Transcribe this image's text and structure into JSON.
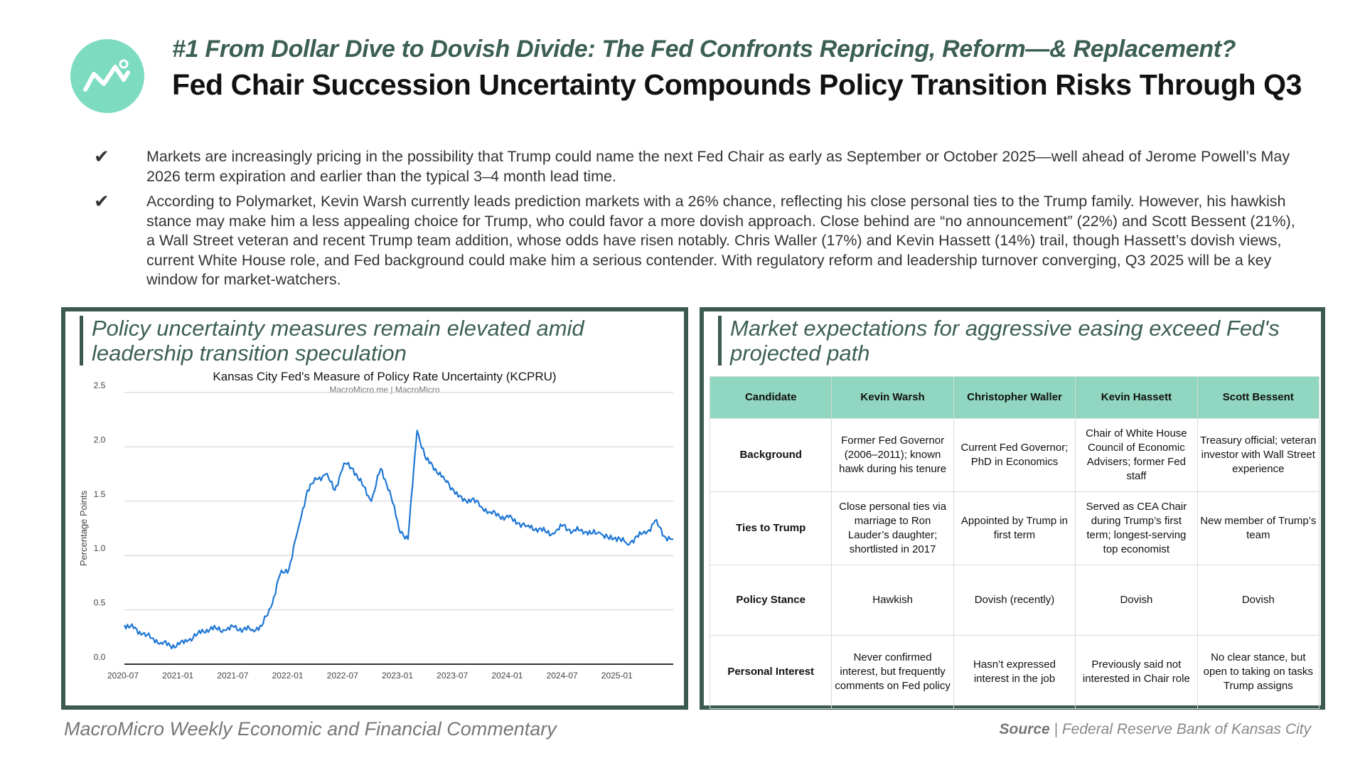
{
  "header": {
    "kicker": "#1 From Dollar Dive to Dovish Divide: The Fed Confronts Repricing, Reform—& Replacement?",
    "title": "Fed Chair Succession Uncertainty Compounds Policy Transition Risks Through Q3",
    "logo_icon": "line-chart-icon",
    "logo_color": "#7ddcbf"
  },
  "bullets": [
    "Markets are increasingly pricing in the possibility that Trump could name the next Fed Chair as early as September or October 2025—well ahead of Jerome Powell’s May 2026 term expiration and earlier than the typical 3–4 month lead time.",
    "According to Polymarket, Kevin Warsh currently leads prediction markets with a 26% chance, reflecting his close personal ties to the Trump family. However, his hawkish stance may make him a less appealing choice for Trump, who could favor a more dovish approach. Close behind are “no announcement” (22%) and Scott Bessent (21%), a Wall Street veteran and recent Trump team addition, whose odds have risen notably. Chris Waller (17%) and Kevin Hassett (14%) trail, though Hassett’s dovish views, current White House role, and Fed background could make him a serious contender. With regulatory reform and leadership turnover converging, Q3 2025 will be a key window for market-watchers."
  ],
  "left_panel": {
    "title": "Policy uncertainty measures remain elevated amid leadership transition speculation"
  },
  "chart_data": {
    "type": "line",
    "title": "Kansas City Fed's Measure of Policy Rate Uncertainty (KCPRU)",
    "subtitle": "MacroMicro.me | MacroMicro",
    "xlabel": "",
    "ylabel": "Percentage Points",
    "ylim": [
      0,
      2.5
    ],
    "yticks": [
      "0.0",
      "0.5",
      "1.0",
      "1.5",
      "2.0",
      "2.5"
    ],
    "xticks": [
      "2020-07",
      "2021-01",
      "2021-07",
      "2022-01",
      "2022-07",
      "2023-01",
      "2023-07",
      "2024-01",
      "2024-07",
      "2025-01"
    ],
    "grid": true,
    "line_color": "#1f77d4",
    "series": [
      {
        "name": "",
        "x": [
          "2020-07",
          "2020-08",
          "2020-09",
          "2020-10",
          "2020-11",
          "2020-12",
          "2021-01",
          "2021-02",
          "2021-03",
          "2021-04",
          "2021-05",
          "2021-06",
          "2021-07",
          "2021-08",
          "2021-09",
          "2021-10",
          "2021-11",
          "2021-12",
          "2022-01",
          "2022-02",
          "2022-03",
          "2022-04",
          "2022-05",
          "2022-06",
          "2022-07",
          "2022-08",
          "2022-09",
          "2022-10",
          "2022-11",
          "2022-12",
          "2023-01",
          "2023-02",
          "2023-03",
          "2023-04",
          "2023-05",
          "2023-06",
          "2023-07",
          "2023-08",
          "2023-09",
          "2023-10",
          "2023-11",
          "2023-12",
          "2024-01",
          "2024-02",
          "2024-03",
          "2024-04",
          "2024-05",
          "2024-06",
          "2024-07",
          "2024-08",
          "2024-09",
          "2024-10",
          "2024-11",
          "2024-12",
          "2025-01",
          "2025-02",
          "2025-03",
          "2025-04",
          "2025-05",
          "2025-06",
          "2025-07"
        ],
        "values": [
          0.36,
          0.33,
          0.28,
          0.24,
          0.2,
          0.17,
          0.18,
          0.22,
          0.28,
          0.32,
          0.33,
          0.31,
          0.34,
          0.32,
          0.32,
          0.35,
          0.52,
          0.82,
          0.88,
          1.25,
          1.6,
          1.7,
          1.75,
          1.6,
          1.85,
          1.8,
          1.65,
          1.5,
          1.8,
          1.6,
          1.25,
          1.15,
          2.15,
          1.88,
          1.8,
          1.7,
          1.6,
          1.5,
          1.52,
          1.45,
          1.4,
          1.36,
          1.35,
          1.3,
          1.27,
          1.25,
          1.22,
          1.2,
          1.28,
          1.22,
          1.24,
          1.2,
          1.21,
          1.15,
          1.17,
          1.1,
          1.18,
          1.2,
          1.32,
          1.18,
          1.15
        ]
      }
    ]
  },
  "right_panel": {
    "title": "Market expectations for aggressive easing exceed Fed's projected path",
    "table": {
      "headers": [
        "Candidate",
        "Kevin Warsh",
        "Christopher Waller",
        "Kevin Hassett",
        "Scott Bessent"
      ],
      "rows": [
        [
          "Background",
          "Former Fed Governor (2006–2011); known hawk during his tenure",
          "Current Fed Governor; PhD in Economics",
          "Chair of White House Council of Economic Advisers; former Fed staff",
          "Treasury official; veteran investor with Wall Street experience"
        ],
        [
          "Ties to Trump",
          "Close personal ties via marriage to Ron Lauder’s daughter; shortlisted in 2017",
          "Appointed by Trump in first term",
          "Served as CEA Chair during Trump’s first term; longest-serving top economist",
          "New member of Trump’s team"
        ],
        [
          "Policy Stance",
          "Hawkish",
          "Dovish (recently)",
          "Dovish",
          "Dovish"
        ],
        [
          "Personal Interest",
          "Never confirmed interest, but frequently comments on Fed policy",
          "Hasn’t expressed interest in the job",
          "Previously said not interested in Chair role",
          "No clear stance, but open to taking on tasks Trump assigns"
        ]
      ]
    }
  },
  "footer": {
    "left": "MacroMicro Weekly Economic and Financial Commentary",
    "source_label": "Source",
    "source_sep": " | ",
    "source_text": "Federal Reserve Bank of Kansas City"
  },
  "colors": {
    "accent": "#3c5a52",
    "table_header": "#90d6c0",
    "kicker": "#3c5f55"
  }
}
